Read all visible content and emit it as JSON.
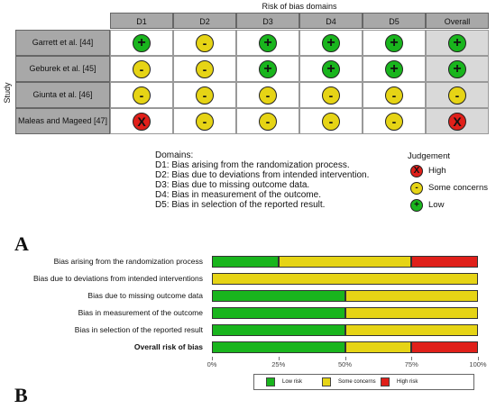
{
  "panel_a": {
    "title": "Risk of bias domains",
    "study_axis_label": "Study",
    "domains": [
      "D1",
      "D2",
      "D3",
      "D4",
      "D5",
      "Overall"
    ],
    "studies": [
      {
        "name": "Garrett et al. [44]",
        "judgements": [
          "low",
          "some",
          "low",
          "low",
          "low",
          "low"
        ]
      },
      {
        "name": "Geburek et al. [45]",
        "judgements": [
          "some",
          "some",
          "low",
          "low",
          "low",
          "low"
        ]
      },
      {
        "name": "Giunta et al. [46]",
        "judgements": [
          "some",
          "some",
          "some",
          "some",
          "some",
          "some"
        ]
      },
      {
        "name": "Maleas and Mageed [47]",
        "judgements": [
          "high",
          "some",
          "some",
          "some",
          "some",
          "high"
        ]
      }
    ],
    "domains_heading": "Domains:",
    "domain_descriptions": [
      "D1: Bias arising from the randomization process.",
      "D2: Bias due to deviations from intended intervention.",
      "D3: Bias due to missing outcome data.",
      "D4: Bias in measurement of the outcome.",
      "D5: Bias in selection of the reported result."
    ],
    "judgement_title": "Judgement",
    "judgement_legend": [
      {
        "key": "high",
        "label": "High",
        "symbol": "X",
        "color": "#e0201a"
      },
      {
        "key": "some",
        "label": "Some concerns",
        "symbol": "-",
        "color": "#e6d415"
      },
      {
        "key": "low",
        "label": "Low",
        "symbol": "+",
        "color": "#19b51d"
      }
    ],
    "letter": "A"
  },
  "chart_data": {
    "type": "bar",
    "orientation": "horizontal",
    "stacked": true,
    "categories": [
      "Bias arising from the randomization process",
      "Bias due to deviations from intended interventions",
      "Bias due to missing outcome data",
      "Bias in measurement of the outcome",
      "Bias in selection of the reported result",
      "Overall risk of bias"
    ],
    "series": [
      {
        "name": "Low risk",
        "color": "#19b51d",
        "values": [
          25,
          0,
          50,
          50,
          50,
          50
        ]
      },
      {
        "name": "Some concerns",
        "color": "#e6d415",
        "values": [
          50,
          100,
          50,
          50,
          50,
          25
        ]
      },
      {
        "name": "High risk",
        "color": "#e0201a",
        "values": [
          25,
          0,
          0,
          0,
          0,
          25
        ]
      }
    ],
    "xlim": [
      0,
      100
    ],
    "xticks": [
      "0%",
      "25%",
      "50%",
      "75%",
      "100%"
    ],
    "legend_position": "bottom",
    "letter": "B"
  }
}
